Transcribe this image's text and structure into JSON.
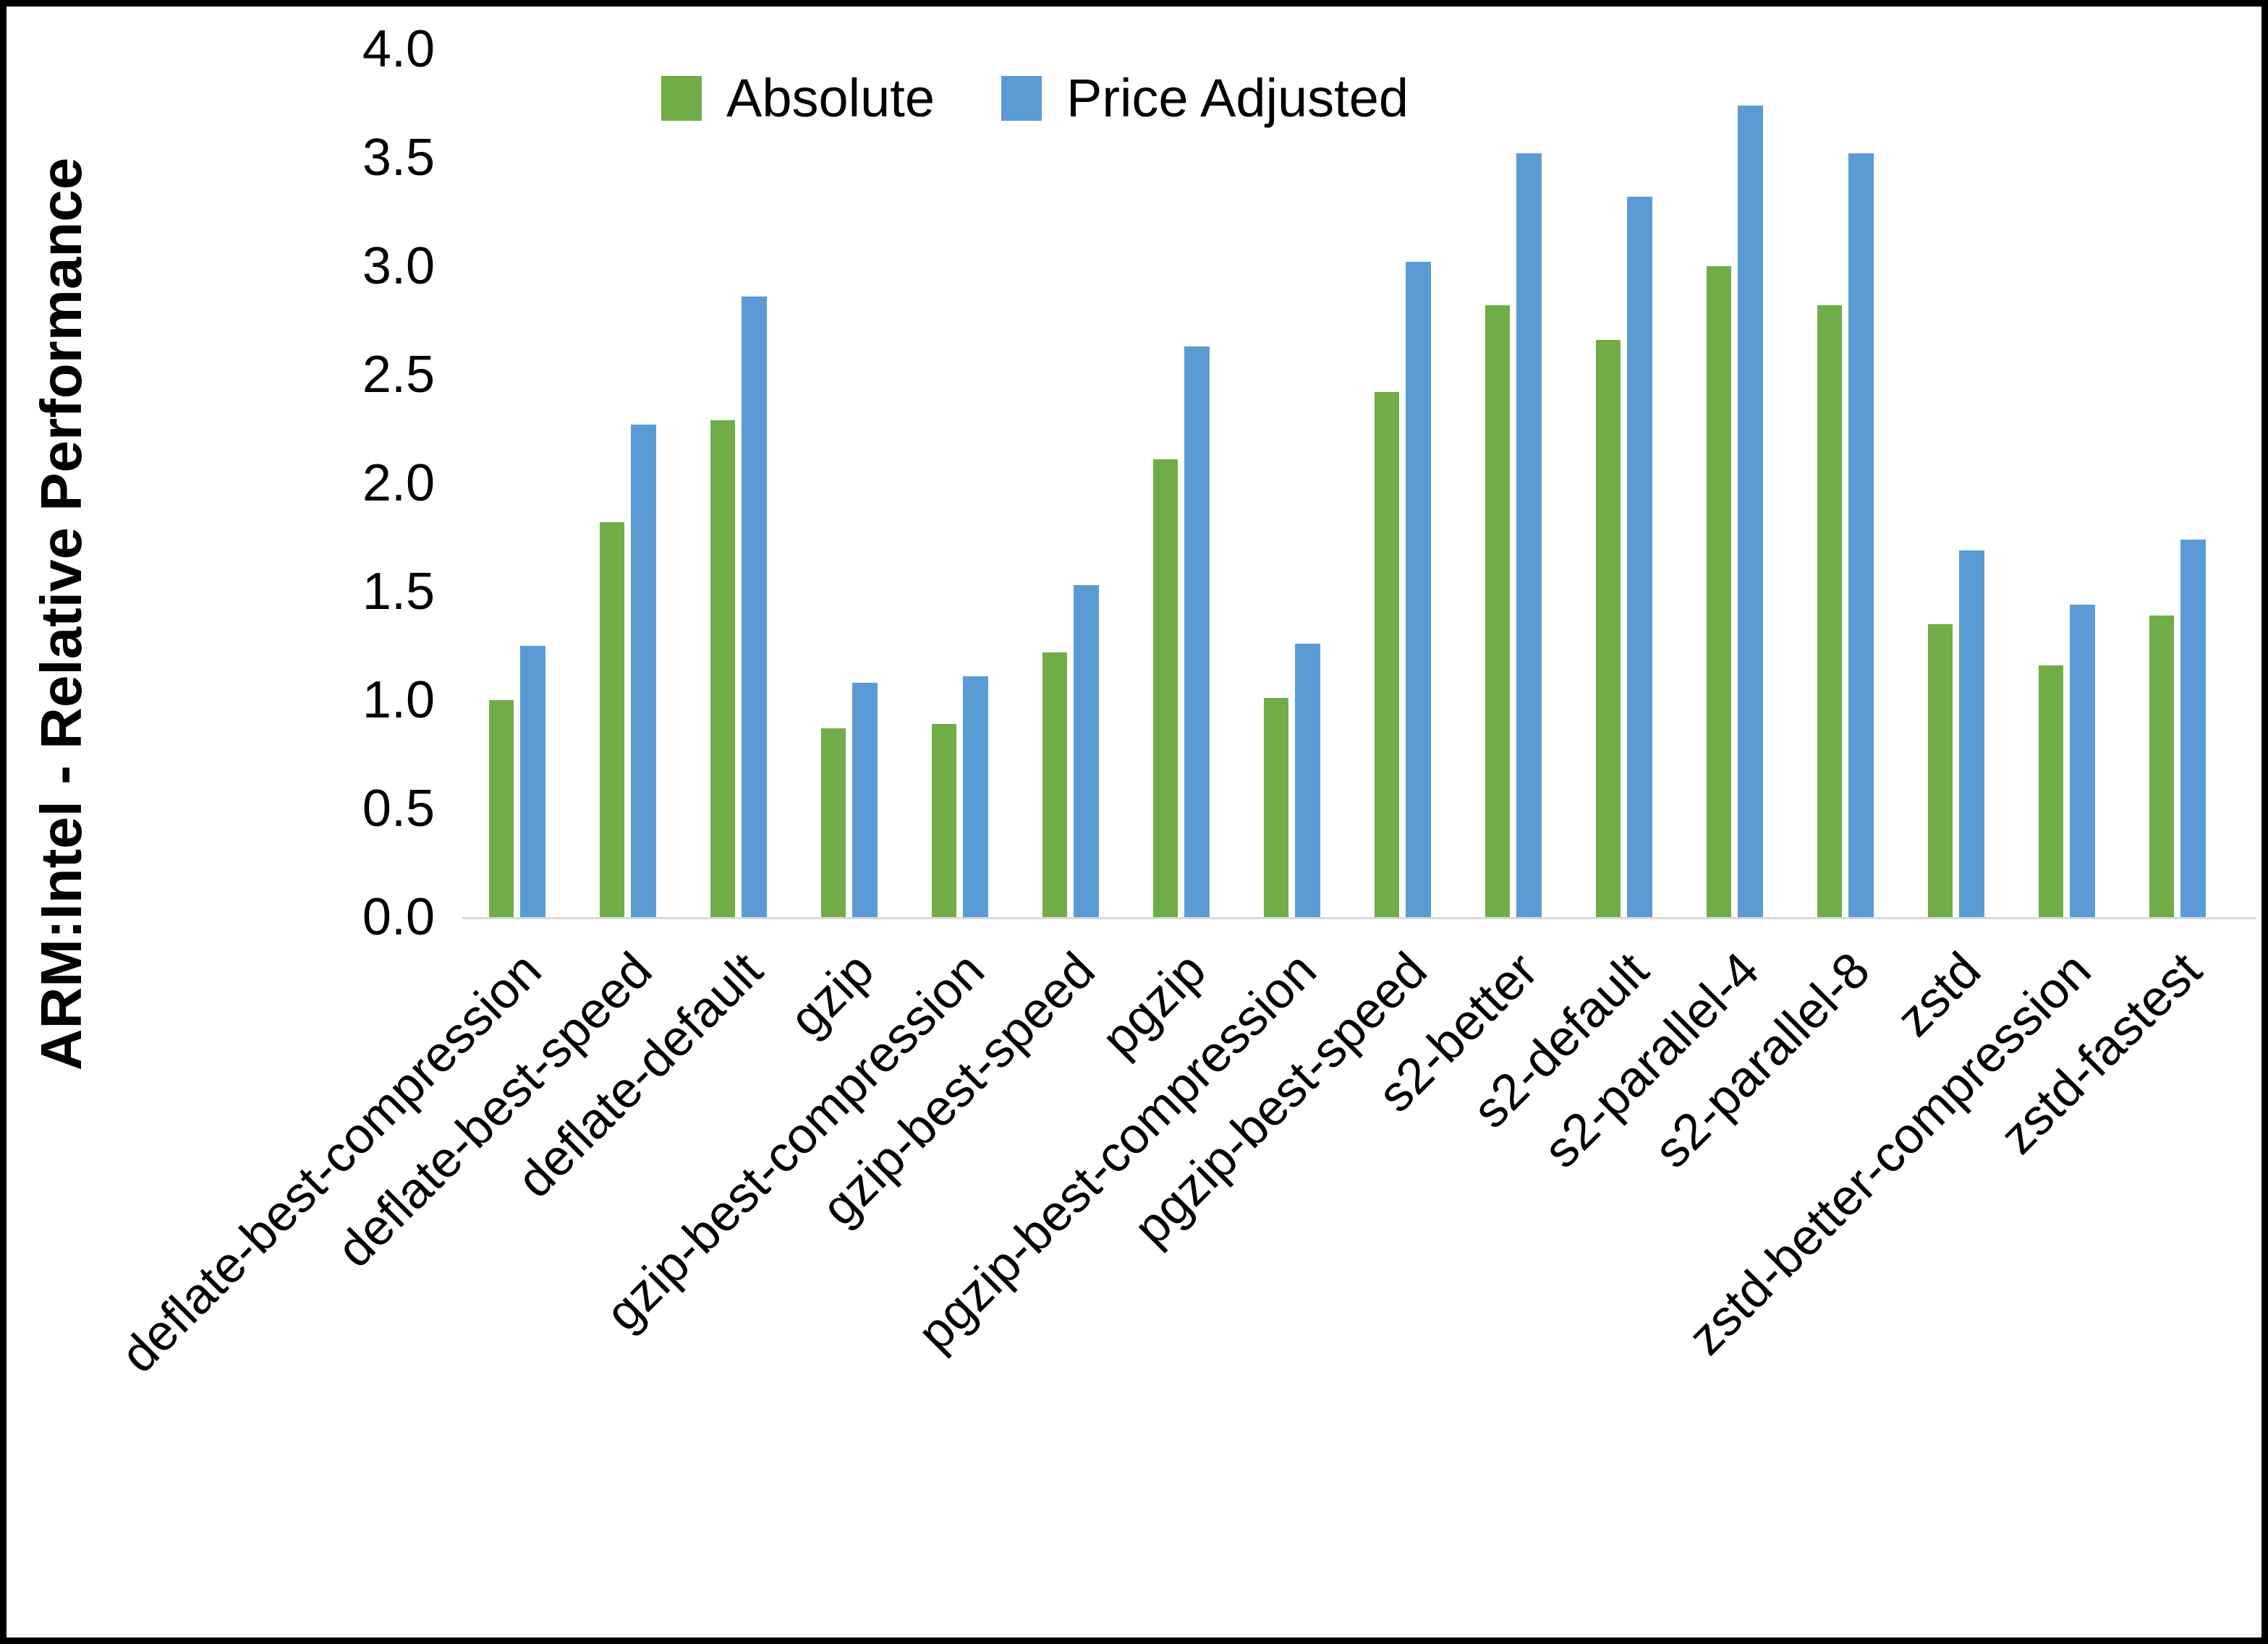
{
  "figure": {
    "background": "#FFFFFF",
    "border_color": "#000000"
  },
  "chart_data": {
    "type": "bar",
    "title": "",
    "xlabel": "",
    "ylabel": "ARM:Intel - Relative Performance",
    "ylim": [
      0,
      4
    ],
    "ytick_step": 0.5,
    "ytick_labels": [
      "4.0",
      "3.5",
      "3.0",
      "2.5",
      "2.0",
      "1.5",
      "1.0",
      "0.5",
      "0.0"
    ],
    "grid": false,
    "legend_position": "top-center",
    "axis_line_color": "#D9D9D9",
    "categories": [
      "deflate-best-compression",
      "deflate-best-speed",
      "deflate-default",
      "gzip",
      "gzip-best-compression",
      "gzip-best-speed",
      "pgzip",
      "pgzip-best-compression",
      "pgzip-best-speed",
      "s2-better",
      "s2-default",
      "s2-parallel-4",
      "s2-parallel-8",
      "zstd",
      "zstd-better-compression",
      "zstd-fastest"
    ],
    "series": [
      {
        "name": "Absolute",
        "color": "#70AD47",
        "values": [
          1.0,
          1.82,
          2.29,
          0.87,
          0.89,
          1.22,
          2.11,
          1.01,
          2.42,
          2.82,
          2.66,
          3.0,
          2.82,
          1.35,
          1.16,
          1.39
        ]
      },
      {
        "name": "Price Adjusted",
        "color": "#5B9BD5",
        "values": [
          1.25,
          2.27,
          2.86,
          1.08,
          1.11,
          1.53,
          2.63,
          1.26,
          3.02,
          3.52,
          3.32,
          3.74,
          3.52,
          1.69,
          1.44,
          1.74
        ]
      }
    ]
  }
}
